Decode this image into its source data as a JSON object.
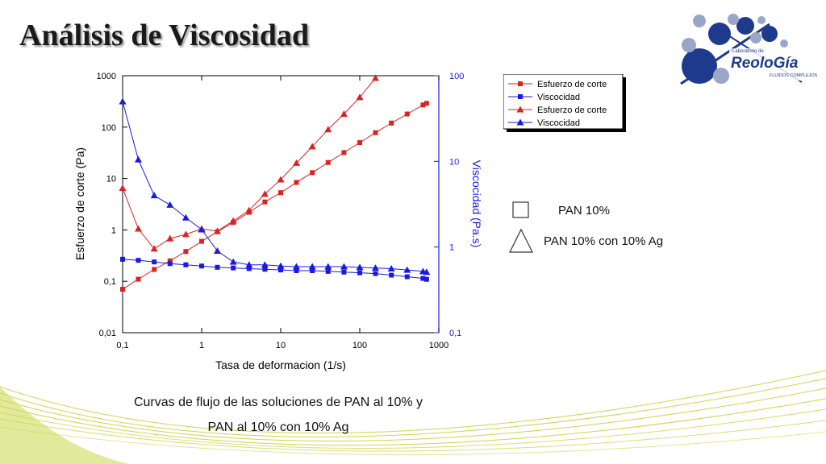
{
  "title": "Análisis de Viscosidad",
  "logo": {
    "top_text": "Laboratorio de",
    "brand": "ReoloGía",
    "tagline": "FLUIDOS COMPLEJOS"
  },
  "caption_line1": "Curvas de flujo de las soluciones de PAN al 10% y",
  "caption_line2": "PAN al 10% con 10% Ag",
  "shape_legend": [
    {
      "shape": "square",
      "label": "PAN 10%"
    },
    {
      "shape": "triangle",
      "label": "PAN 10% con 10% Ag"
    }
  ],
  "colors": {
    "red": "#dd2222",
    "blue": "#1a1ae0",
    "logo_blue": "#1e3a8c",
    "logo_light": "#9aa6c8",
    "swoosh": "#c8d84a"
  },
  "chart_data": {
    "type": "scatter",
    "xlabel": "Tasa de deformacion (1/s)",
    "ylabel_left": "Esfuerzo de corte (Pa)",
    "ylabel_right": "Viscocidad (Pa.s)",
    "x_scale": "log",
    "xlim": [
      0.1,
      1000
    ],
    "ylim_left": [
      0.01,
      1000
    ],
    "ylim_right": [
      0.1,
      100
    ],
    "x_ticks": [
      "0,1",
      "1",
      "10",
      "100",
      "1000"
    ],
    "y_left_ticks": [
      "0,01",
      "0,1",
      "1",
      "10",
      "100",
      "1000"
    ],
    "y_right_ticks": [
      "0,1",
      "1",
      "10",
      "100"
    ],
    "legend_position": "outside-right",
    "series": [
      {
        "name": "Esfuerzo de corte",
        "axis": "left",
        "marker": "square",
        "color": "#dd2222",
        "x": [
          0.1,
          0.158,
          0.251,
          0.398,
          0.631,
          1,
          1.58,
          2.51,
          3.98,
          6.31,
          10,
          15.8,
          25.1,
          39.8,
          63.1,
          100,
          158,
          251,
          398,
          631,
          700
        ],
        "y": [
          0.07,
          0.11,
          0.17,
          0.25,
          0.38,
          0.6,
          0.92,
          1.4,
          2.2,
          3.5,
          5.3,
          8.4,
          13,
          20.5,
          32,
          50,
          78,
          120,
          180,
          270,
          290
        ]
      },
      {
        "name": "Viscocidad",
        "axis": "right",
        "marker": "square",
        "color": "#1a1ae0",
        "x": [
          0.1,
          0.158,
          0.251,
          0.398,
          0.631,
          1,
          1.58,
          2.51,
          3.98,
          6.31,
          10,
          15.8,
          25.1,
          39.8,
          63.1,
          100,
          158,
          251,
          398,
          631,
          700
        ],
        "y": [
          0.72,
          0.7,
          0.67,
          0.64,
          0.62,
          0.6,
          0.58,
          0.57,
          0.56,
          0.55,
          0.54,
          0.53,
          0.53,
          0.52,
          0.51,
          0.5,
          0.49,
          0.47,
          0.45,
          0.43,
          0.42
        ]
      },
      {
        "name": "Esfuerzo de corte",
        "axis": "left",
        "marker": "triangle",
        "color": "#dd2222",
        "x": [
          0.1,
          0.158,
          0.251,
          0.398,
          0.631,
          1,
          1.58,
          2.51,
          3.98,
          6.31,
          10,
          15.8,
          25.1,
          39.8,
          63.1,
          100,
          158
        ],
        "y": [
          6.5,
          1.05,
          0.43,
          0.68,
          0.82,
          1.05,
          0.95,
          1.5,
          2.4,
          5,
          9.5,
          20,
          42,
          90,
          180,
          380,
          900
        ]
      },
      {
        "name": "Viscocidad",
        "axis": "right",
        "marker": "triangle",
        "color": "#1a1ae0",
        "x": [
          0.1,
          0.158,
          0.251,
          0.398,
          0.631,
          1,
          1.58,
          2.51,
          3.98,
          6.31,
          10,
          15.8,
          25.1,
          39.8,
          63.1,
          100,
          158,
          251,
          398,
          631,
          700
        ],
        "y": [
          50,
          10.5,
          4,
          3.1,
          2.2,
          1.6,
          0.9,
          0.67,
          0.62,
          0.62,
          0.6,
          0.59,
          0.59,
          0.59,
          0.59,
          0.58,
          0.57,
          0.56,
          0.54,
          0.52,
          0.51
        ]
      }
    ]
  }
}
